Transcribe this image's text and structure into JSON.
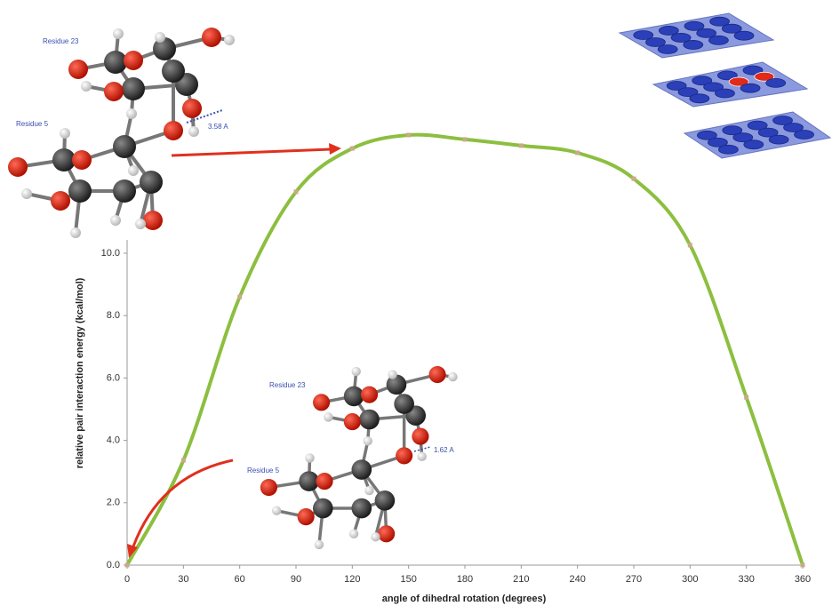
{
  "chart_data": {
    "type": "line",
    "x_label": "angle of dihedral rotation (degrees)",
    "y_label": "relative pair interaction energy (kcal/mol)",
    "annotations": [
      "Residue 23",
      "Residue 5",
      "3.58 A",
      "Residue 23",
      "Residue 5",
      "1.62 A"
    ],
    "x": [
      0,
      30,
      60,
      90,
      120,
      150,
      180,
      210,
      240,
      270,
      300,
      330,
      360
    ],
    "series": [
      {
        "color": "#8cbf3f",
        "values": [
          0,
          3.36,
          8.6,
          11.97,
          13.36,
          13.79,
          13.65,
          13.45,
          13.22,
          12.39,
          10.26,
          5.38,
          0
        ]
      }
    ],
    "xlim": [
      0,
      360
    ],
    "ylim": [
      0,
      14
    ],
    "xticks": [
      0,
      30,
      60,
      90,
      120,
      150,
      180,
      210,
      240,
      270,
      300,
      330,
      360
    ],
    "yticks": [
      {
        "value": 0,
        "label": "0.0"
      },
      {
        "value": 2,
        "label": "2.0"
      },
      {
        "value": 4,
        "label": "4.0"
      },
      {
        "value": 6,
        "label": "6.0"
      },
      {
        "value": 8,
        "label": "8.0"
      },
      {
        "value": 10,
        "label": "10.0"
      }
    ],
    "grid": false
  }
}
